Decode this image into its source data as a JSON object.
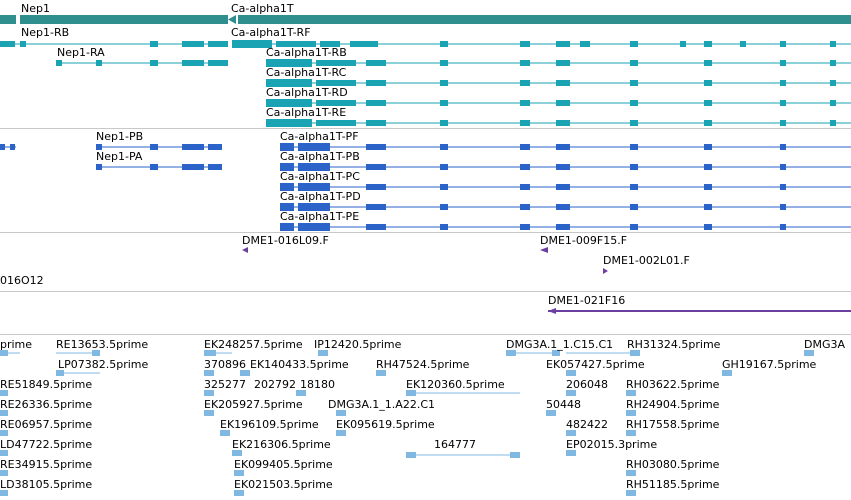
{
  "colors": {
    "gene": "#2f8f8f",
    "transcript_rna": "#1aa3b3",
    "transcript_protein": "#2b63c9",
    "clone": "#6b3fa0",
    "est": "#7fb8e0",
    "separator": "#c8c8c8"
  },
  "genes": [
    {
      "name": "Nep1",
      "direction": "minus"
    },
    {
      "name": "Ca-alpha1T",
      "direction": "minus"
    }
  ],
  "rna_transcripts": [
    "Nep1-RB",
    "Nep1-RA",
    "Ca-alpha1T-RF",
    "Ca-alpha1T-RB",
    "Ca-alpha1T-RC",
    "Ca-alpha1T-RD",
    "Ca-alpha1T-RE"
  ],
  "protein_transcripts": [
    "Nep1-PB",
    "Nep1-PA",
    "Ca-alpha1T-PF",
    "Ca-alpha1T-PB",
    "Ca-alpha1T-PC",
    "Ca-alpha1T-PD",
    "Ca-alpha1T-PE"
  ],
  "clones": [
    "DME1-016L09.F",
    "DME1-009F15.F",
    "DME1-002L01.F",
    "016O12",
    "DME1-021F16"
  ],
  "ests": [
    "prime",
    "RE13653.5prime",
    "EK248257.5prime",
    "IP12420.5prime",
    "DMG3A.1_1.C15.C1",
    "RH31324.5prime",
    "DMG3A",
    "LP07382.5prime",
    "370896",
    "EK140433.5prime",
    "RH47524.5prime",
    "EK057427.5prime",
    "GH19167.5prime",
    "RE51849.5prime",
    "325277",
    "202792",
    "18180",
    "EK120360.5prime",
    "206048",
    "RH03622.5prime",
    "RE26336.5prime",
    "EK205927.5prime",
    "DMG3A.1_1.A22.C1",
    "50448",
    "RH24904.5prime",
    "RE06957.5prime",
    "EK196109.5prime",
    "EK095619.5prime",
    "482422",
    "RH17558.5prime",
    "LD47722.5prime",
    "EK216306.5prime",
    "164777",
    "EP02015.3prime",
    "RE34915.5prime",
    "EK099405.5prime",
    "RH03080.5prime",
    "LD38105.5prime",
    "EK021503.5prime",
    "RH51185.5prime"
  ]
}
